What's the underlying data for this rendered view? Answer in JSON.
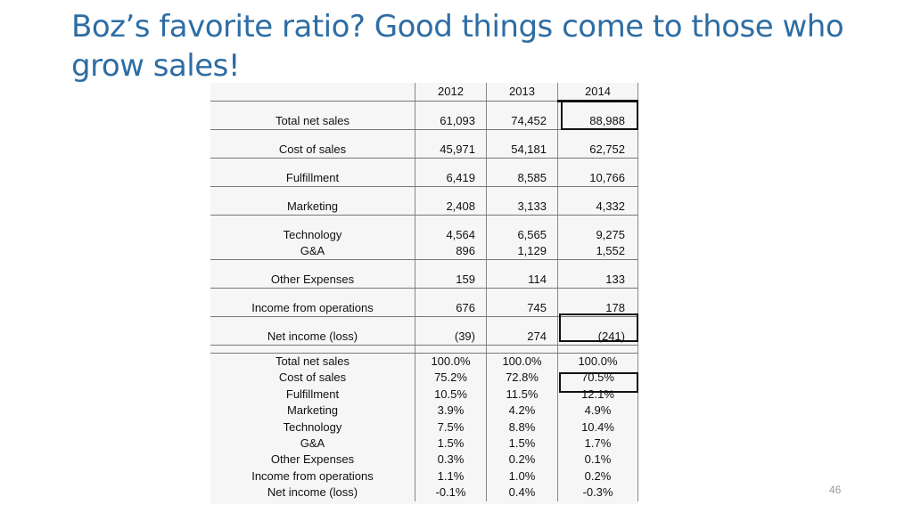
{
  "slide": {
    "title": "Boz’s favorite ratio? Good things come to those who grow sales!",
    "slide_number": "46"
  },
  "table": {
    "years": [
      "2012",
      "2013",
      "2014"
    ],
    "rows": [
      {
        "label": "Total net sales",
        "values": [
          "61,093",
          "74,452",
          "88,988"
        ]
      },
      {
        "label": "Cost of sales",
        "values": [
          "45,971",
          "54,181",
          "62,752"
        ]
      },
      {
        "label": "Fulfillment",
        "values": [
          "6,419",
          "8,585",
          "10,766"
        ]
      },
      {
        "label": "Marketing",
        "values": [
          "2,408",
          "3,133",
          "4,332"
        ]
      },
      {
        "label": "Technology",
        "values": [
          "4,564",
          "6,565",
          "9,275"
        ]
      },
      {
        "label": "G&A",
        "values": [
          "896",
          "1,129",
          "1,552"
        ]
      },
      {
        "label": "Other Expenses",
        "values": [
          "159",
          "114",
          "133"
        ]
      },
      {
        "label": "Income from operations",
        "values": [
          "676",
          "745",
          "178"
        ]
      },
      {
        "label": "Net income (loss)",
        "values": [
          "(39)",
          "274",
          "(241)"
        ]
      }
    ],
    "percent_rows": [
      {
        "label": "Total net sales",
        "values": [
          "100.0%",
          "100.0%",
          "100.0%"
        ]
      },
      {
        "label": "Cost of sales",
        "values": [
          "75.2%",
          "72.8%",
          "70.5%"
        ]
      },
      {
        "label": "Fulfillment",
        "values": [
          "10.5%",
          "11.5%",
          "12.1%"
        ]
      },
      {
        "label": "Marketing",
        "values": [
          "3.9%",
          "4.2%",
          "4.9%"
        ]
      },
      {
        "label": "Technology",
        "values": [
          "7.5%",
          "8.8%",
          "10.4%"
        ]
      },
      {
        "label": "G&A",
        "values": [
          "1.5%",
          "1.5%",
          "1.7%"
        ]
      },
      {
        "label": "Other Expenses",
        "values": [
          "0.3%",
          "0.2%",
          "0.1%"
        ]
      },
      {
        "label": "Income from operations",
        "values": [
          "1.1%",
          "1.0%",
          "0.2%"
        ]
      },
      {
        "label": "Net income (loss)",
        "values": [
          "-0.1%",
          "0.4%",
          "-0.3%"
        ]
      }
    ]
  }
}
